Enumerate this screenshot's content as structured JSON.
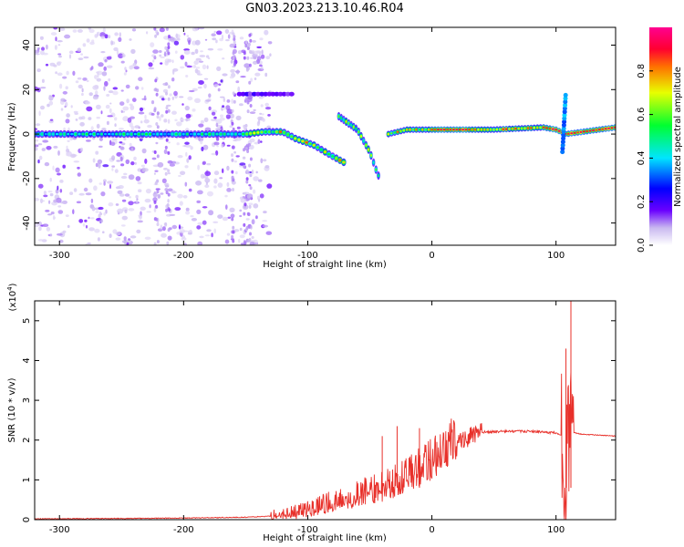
{
  "title": "GN03.2023.213.10.46.R04",
  "chart_data": [
    {
      "type": "heatmap",
      "title": "GN03.2023.213.10.46.R04",
      "xlabel": "Height of straight line (km)",
      "ylabel": "Frequency (Hz)",
      "xlim": [
        -320,
        148
      ],
      "ylim": [
        -50,
        48
      ],
      "xticks": [
        -300,
        -200,
        -100,
        0,
        100
      ],
      "yticks": [
        -40,
        -20,
        0,
        20,
        40
      ],
      "colorbar": {
        "label": "Normalized spectral amplitude",
        "range": [
          0,
          1
        ],
        "ticks": [
          0.0,
          0.2,
          0.4,
          0.6,
          0.8
        ]
      },
      "main_track": [
        {
          "x": -320,
          "f": 0
        },
        {
          "x": -250,
          "f": 0
        },
        {
          "x": -200,
          "f": 0
        },
        {
          "x": -150,
          "f": 0
        },
        {
          "x": -135,
          "f": 1
        },
        {
          "x": -120,
          "f": 1
        },
        {
          "x": -110,
          "f": -2
        },
        {
          "x": -95,
          "f": -5
        },
        {
          "x": -80,
          "f": -10
        },
        {
          "x": -70,
          "f": -13
        }
      ],
      "branch_track": [
        {
          "x": -75,
          "f": 8
        },
        {
          "x": -60,
          "f": 2
        },
        {
          "x": -50,
          "f": -8
        },
        {
          "x": -45,
          "f": -16
        },
        {
          "x": -42,
          "f": -20
        }
      ],
      "late_track": [
        {
          "x": -35,
          "f": 0
        },
        {
          "x": -20,
          "f": 2
        },
        {
          "x": 0,
          "f": 2
        },
        {
          "x": 50,
          "f": 2
        },
        {
          "x": 90,
          "f": 3
        },
        {
          "x": 100,
          "f": 2
        },
        {
          "x": 108,
          "f": 0
        },
        {
          "x": 148,
          "f": 3
        }
      ]
    },
    {
      "type": "line",
      "xlabel": "Height of straight line (km)",
      "ylabel": "SNR (10 * v/v)",
      "y_multiplier": "(x10^4)",
      "xlim": [
        -320,
        148
      ],
      "ylim": [
        0,
        5.5
      ],
      "xticks": [
        -300,
        -200,
        -100,
        0,
        100
      ],
      "yticks": [
        0,
        1,
        2,
        3,
        4,
        5
      ],
      "series": [
        {
          "color": "#e8302a",
          "x": [
            -320,
            -250,
            -200,
            -150,
            -120,
            -100,
            -80,
            -60,
            -40,
            -20,
            0,
            20,
            40,
            60,
            80,
            100,
            105,
            108,
            110,
            112,
            120,
            148
          ],
          "y": [
            0.02,
            0.03,
            0.04,
            0.06,
            0.1,
            0.2,
            0.4,
            0.55,
            0.75,
            1.0,
            1.4,
            1.95,
            2.2,
            2.22,
            2.22,
            2.18,
            2.1,
            1.2,
            2.3,
            2.2,
            2.15,
            2.1
          ]
        }
      ],
      "spikes": [
        {
          "x": -40,
          "y": 2.1
        },
        {
          "x": -28,
          "y": 2.35
        },
        {
          "x": -10,
          "y": 2.3
        },
        {
          "x": 108,
          "y": 4.3
        },
        {
          "x": 112,
          "y": 5.5
        }
      ]
    }
  ]
}
